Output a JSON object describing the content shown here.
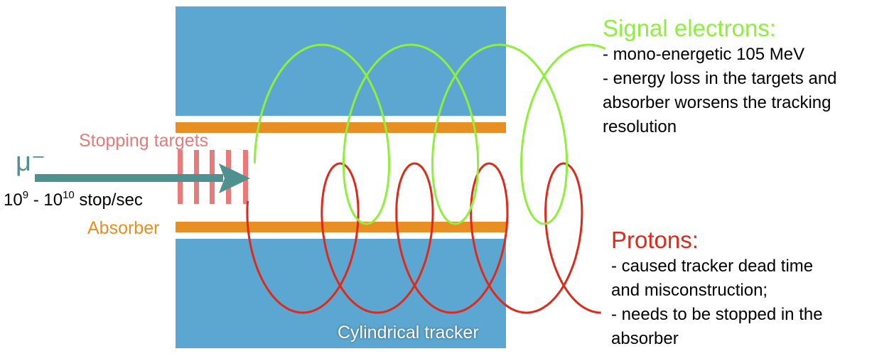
{
  "colors": {
    "tracker": "#5ca7d1",
    "absorber": "#e88f23",
    "targets": "#e87a7a",
    "muon": "#4f9190",
    "signal": "#8ff03c",
    "proton": "#de2a1a",
    "tracker_label": "#ffffff"
  },
  "labels": {
    "stopping_targets": "Stopping targets",
    "muon": "μ⁻",
    "rate_base1": "10",
    "rate_exp1": "9",
    "rate_mid": " - 10",
    "rate_exp2": "10",
    "rate_unit": " stop/sec",
    "absorber": "Absorber",
    "tracker": "Cylindrical tracker"
  },
  "signal": {
    "title": "Signal electrons:",
    "lines": [
      "- mono-energetic 105 MeV",
      "- energy loss in the targets and",
      "absorber worsens the tracking",
      "resolution"
    ]
  },
  "protons": {
    "title": "Protons:",
    "lines": [
      "- caused tracker dead time",
      "and misconstruction;",
      "- needs to be stopped in the",
      "absorber"
    ]
  }
}
